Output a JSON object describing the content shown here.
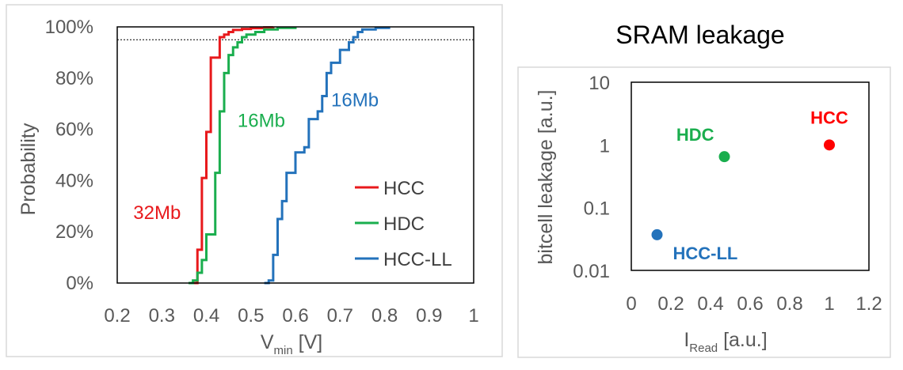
{
  "chart_data": [
    {
      "type": "line",
      "subtype": "step-cdf",
      "xlabel_main": "V",
      "xlabel_sub": "min",
      "xlabel_unit": " [V]",
      "ylabel": "Probability",
      "xlim": [
        0.2,
        1.0
      ],
      "ylim": [
        0,
        100
      ],
      "x_ticks": [
        "0.2",
        "0.3",
        "0.4",
        "0.5",
        "0.6",
        "0.7",
        "0.8",
        "0.9",
        "1"
      ],
      "y_ticks": [
        "0%",
        "20%",
        "40%",
        "60%",
        "80%",
        "100%"
      ],
      "y_tick_values": [
        0,
        20,
        40,
        60,
        80,
        100
      ],
      "reference_line_y": 95,
      "legend_position": "bottom-right",
      "series": [
        {
          "name": "HCC",
          "color": "#e8191c",
          "x": [
            0.37,
            0.38,
            0.39,
            0.4,
            0.41,
            0.43,
            0.44,
            0.45,
            0.46,
            0.48,
            0.5,
            0.53,
            0.55
          ],
          "y": [
            0,
            13,
            41,
            59,
            88,
            96,
            97,
            98,
            98.8,
            99.2,
            99.5,
            99.8,
            100
          ]
        },
        {
          "name": "HDC",
          "color": "#1aae4e",
          "x": [
            0.36,
            0.37,
            0.38,
            0.39,
            0.4,
            0.42,
            0.43,
            0.44,
            0.45,
            0.46,
            0.47,
            0.48,
            0.49,
            0.51,
            0.53,
            0.56,
            0.6
          ],
          "y": [
            0,
            1,
            4,
            9,
            19,
            43,
            67,
            82,
            89,
            92,
            94,
            96,
            97,
            98,
            99,
            99.6,
            100
          ]
        },
        {
          "name": "HCC-LL",
          "color": "#2372bb",
          "x": [
            0.53,
            0.54,
            0.55,
            0.56,
            0.57,
            0.58,
            0.6,
            0.62,
            0.63,
            0.65,
            0.66,
            0.67,
            0.68,
            0.7,
            0.72,
            0.73,
            0.74,
            0.75,
            0.78,
            0.81
          ],
          "y": [
            0,
            1,
            11,
            25,
            32,
            43,
            51,
            53,
            64,
            67,
            73,
            82,
            86,
            91,
            94,
            96,
            98,
            99,
            99.6,
            100
          ]
        }
      ],
      "annotations": [
        {
          "text": "32Mb",
          "color": "#e8191c",
          "x": 0.236,
          "y": 25
        },
        {
          "text": "16Mb",
          "color": "#1aae4e",
          "x": 0.47,
          "y": 61
        },
        {
          "text": "16Mb",
          "color": "#2372bb",
          "x": 0.68,
          "y": 69
        }
      ]
    },
    {
      "type": "scatter",
      "title": "SRAM leakage",
      "xlabel_main": "I",
      "xlabel_sub": "Read",
      "xlabel_unit": " [a.u.]",
      "ylabel": "bitcell leakage [a.u.]",
      "xlim": [
        0,
        1.2
      ],
      "ylim": [
        0.01,
        10
      ],
      "y_scale": "log",
      "x_ticks": [
        "0",
        "0.2",
        "0.4",
        "0.6",
        "0.8",
        "1",
        "1.2"
      ],
      "y_ticks": [
        "0.01",
        "0.1",
        "1",
        "10"
      ],
      "y_tick_values": [
        0.01,
        0.1,
        1,
        10
      ],
      "points": [
        {
          "label": "HCC",
          "color": "#ff0000",
          "x": 1.0,
          "y": 1.0
        },
        {
          "label": "HDC",
          "color": "#1aae4e",
          "x": 0.47,
          "y": 0.65
        },
        {
          "label": "HCC-LL",
          "color": "#2372bb",
          "x": 0.13,
          "y": 0.037
        }
      ]
    }
  ]
}
